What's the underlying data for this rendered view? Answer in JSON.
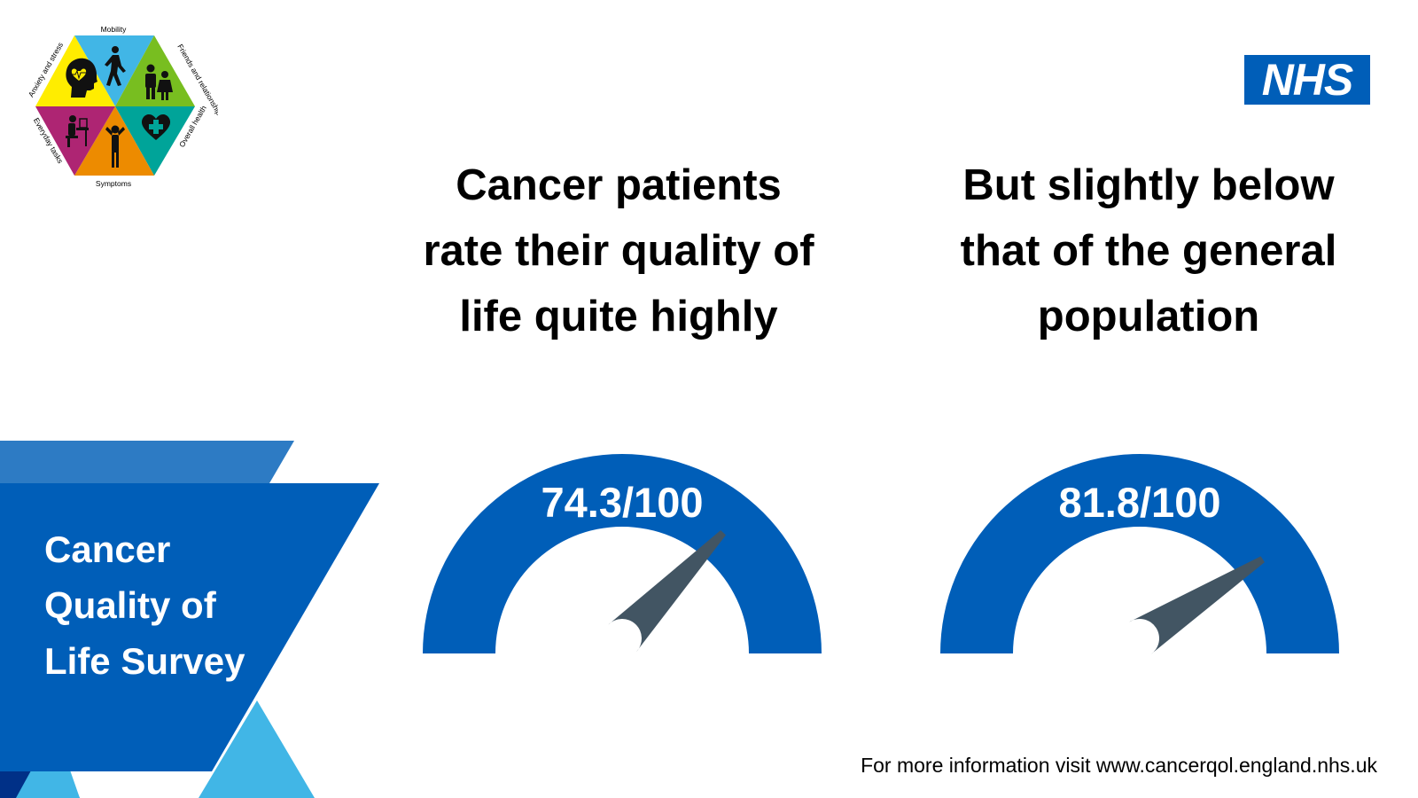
{
  "logo": {
    "segments": [
      {
        "label": "Mobility",
        "icon": "walking-person-icon",
        "color": "#41b6e6"
      },
      {
        "label": "Friends and relationships",
        "icon": "family-icon",
        "color": "#78be20"
      },
      {
        "label": "Overall health",
        "icon": "heart-plus-icon",
        "color": "#00a499"
      },
      {
        "label": "Symptoms",
        "icon": "person-pain-icon",
        "color": "#ed8b00"
      },
      {
        "label": "Everyday tasks",
        "icon": "person-at-desk-icon",
        "color": "#ae2573"
      },
      {
        "label": "Anxiety and stress",
        "icon": "head-heartbeat-icon",
        "color": "#ffed00"
      }
    ]
  },
  "nhs_logo": {
    "text": "NHS",
    "color": "#005eb8"
  },
  "survey_title": {
    "line1": "Cancer",
    "line2": "Quality of",
    "line3": "Life Survey"
  },
  "headline_left": {
    "line1": "Cancer patients",
    "line2": "rate their quality of",
    "line3": "life quite highly"
  },
  "headline_right": {
    "line1": "But slightly below",
    "line2": "that of the general",
    "line3": "population"
  },
  "gauges": [
    {
      "value_text": "74.3/100",
      "value": 74.3,
      "max": 100
    },
    {
      "value_text": "81.8/100",
      "value": 81.8,
      "max": 100
    }
  ],
  "footer": {
    "text": "For more information visit www.cancerqol.england.nhs.uk"
  },
  "colors": {
    "gauge_arc": "#005eb8",
    "needle": "#425563",
    "panel_blue": "#005eb8",
    "light_blue": "#41b6e6",
    "dark_blue": "#003087",
    "mid_blue": "#2d7bc4"
  }
}
